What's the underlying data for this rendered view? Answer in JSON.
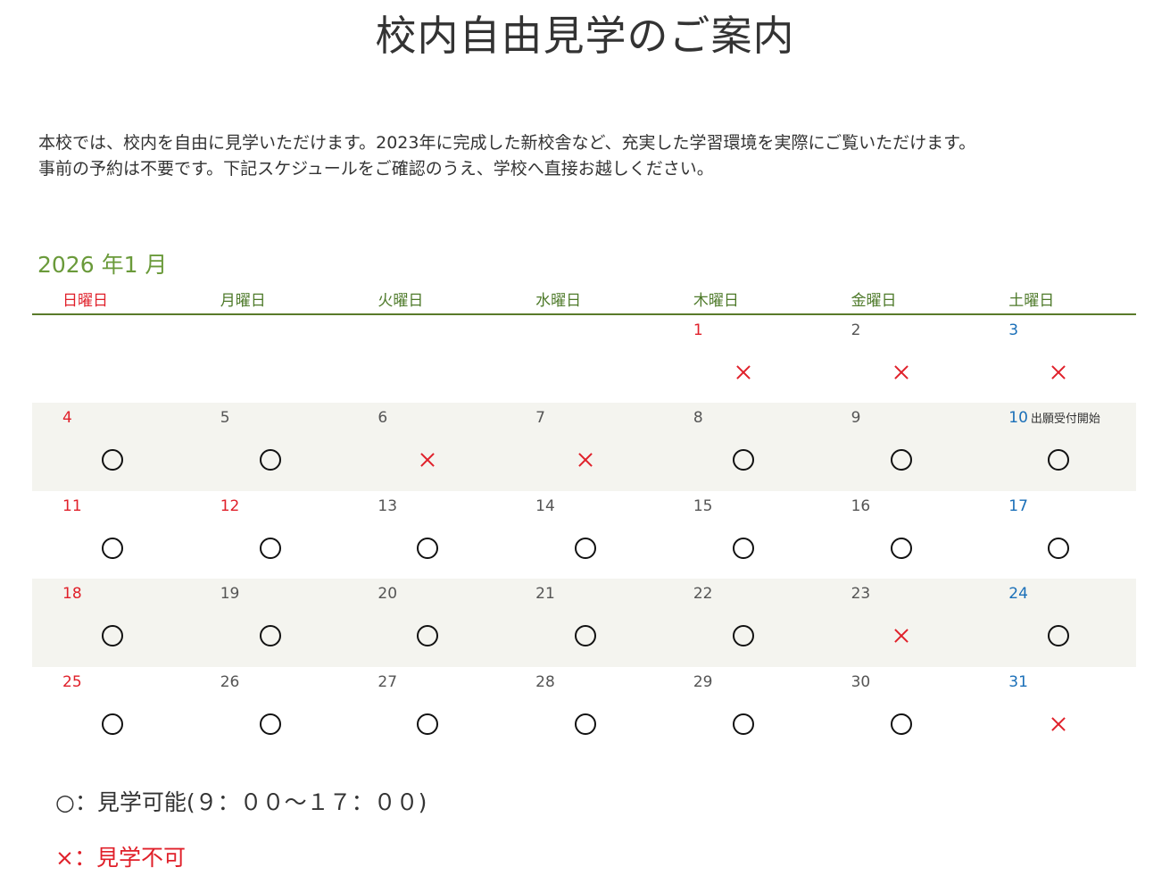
{
  "page": {
    "title": "校内自由見学のご案内",
    "intro_line1": "本校では、校内を自由に見学いただけます。2023年に完成した新校舎など、充実した学習環境を実際にご覧いただけます。",
    "intro_line2": "事前の予約は不要です。下記スケジュールをご確認のうえ、学校へ直接お越しください。"
  },
  "calendar": {
    "month_label": "2026 年1 月",
    "weekdays": [
      "日曜日",
      "月曜日",
      "火曜日",
      "水曜日",
      "木曜日",
      "金曜日",
      "土曜日"
    ],
    "weeks": [
      [
        {
          "day": "",
          "status": ""
        },
        {
          "day": "",
          "status": ""
        },
        {
          "day": "",
          "status": ""
        },
        {
          "day": "",
          "status": ""
        },
        {
          "day": "1",
          "status": "ng",
          "holiday": true
        },
        {
          "day": "2",
          "status": "ng"
        },
        {
          "day": "3",
          "status": "ng"
        }
      ],
      [
        {
          "day": "4",
          "status": "ok"
        },
        {
          "day": "5",
          "status": "ok"
        },
        {
          "day": "6",
          "status": "ng"
        },
        {
          "day": "7",
          "status": "ng"
        },
        {
          "day": "8",
          "status": "ok"
        },
        {
          "day": "9",
          "status": "ok"
        },
        {
          "day": "10",
          "status": "ok",
          "note": "出願受付開始"
        }
      ],
      [
        {
          "day": "11",
          "status": "ok"
        },
        {
          "day": "12",
          "status": "ok",
          "holiday": true
        },
        {
          "day": "13",
          "status": "ok"
        },
        {
          "day": "14",
          "status": "ok"
        },
        {
          "day": "15",
          "status": "ok"
        },
        {
          "day": "16",
          "status": "ok"
        },
        {
          "day": "17",
          "status": "ok"
        }
      ],
      [
        {
          "day": "18",
          "status": "ok"
        },
        {
          "day": "19",
          "status": "ok"
        },
        {
          "day": "20",
          "status": "ok"
        },
        {
          "day": "21",
          "status": "ok"
        },
        {
          "day": "22",
          "status": "ok"
        },
        {
          "day": "23",
          "status": "ng"
        },
        {
          "day": "24",
          "status": "ok"
        }
      ],
      [
        {
          "day": "25",
          "status": "ok"
        },
        {
          "day": "26",
          "status": "ok"
        },
        {
          "day": "27",
          "status": "ok"
        },
        {
          "day": "28",
          "status": "ok"
        },
        {
          "day": "29",
          "status": "ok"
        },
        {
          "day": "30",
          "status": "ok"
        },
        {
          "day": "31",
          "status": "ng"
        }
      ]
    ]
  },
  "legend": {
    "ok": "○：見学可能(９：００～１７：００)",
    "ng": "×：見学不可"
  },
  "colors": {
    "month_label": "#6a9a3a",
    "sunday_holiday": "#e0202a",
    "saturday": "#1a6fb8",
    "unavailable_mark": "#e0202a",
    "shaded_row": "#f4f4ef"
  }
}
